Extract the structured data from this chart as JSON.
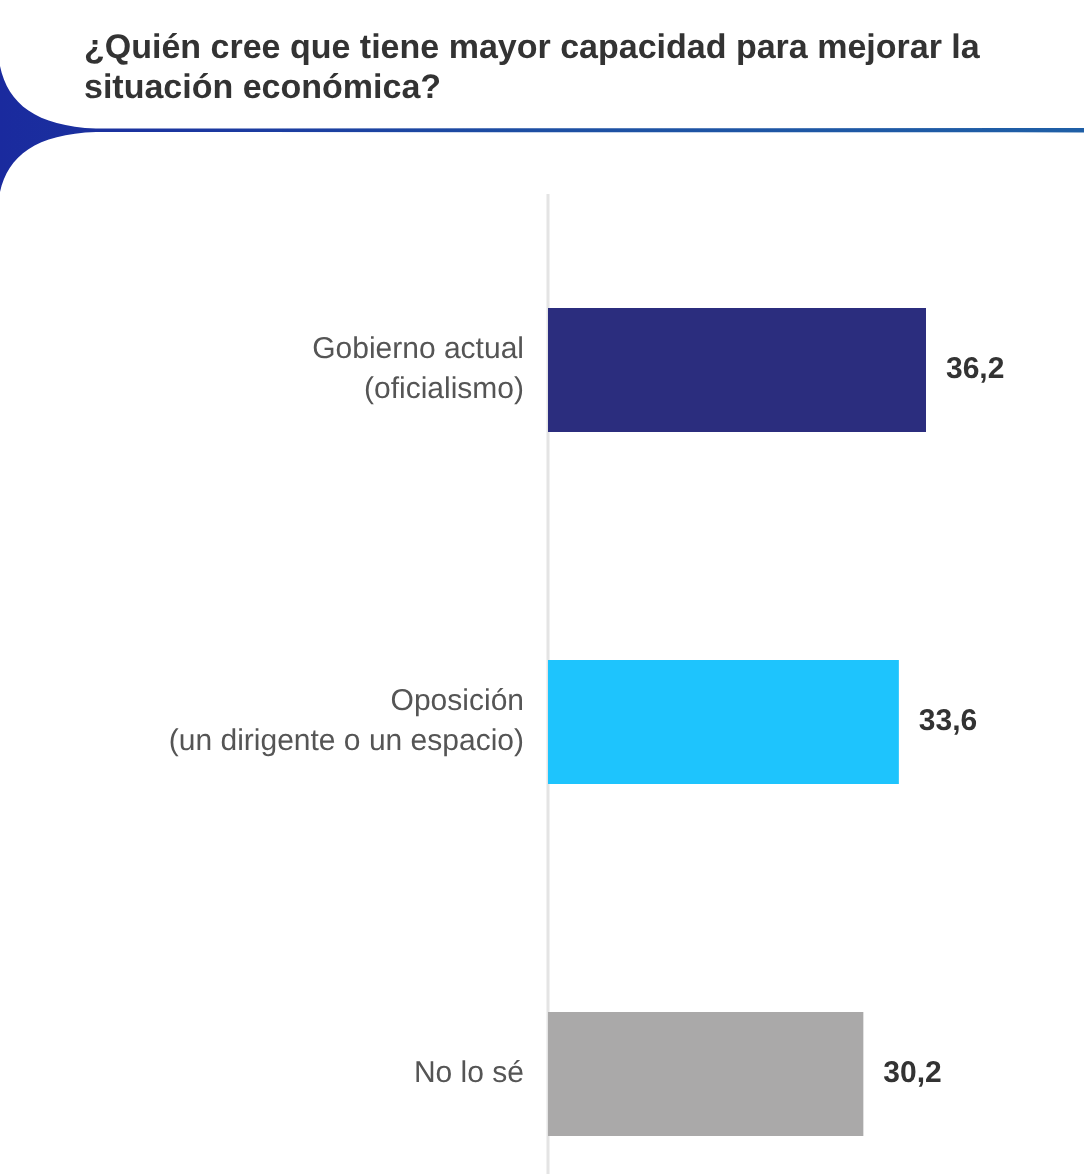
{
  "chart_data": {
    "type": "bar",
    "orientation": "horizontal",
    "title": "¿Quién cree que tiene mayor capacidad para mejorar la situación económica?",
    "categories": [
      "Gobierno actual (oficialismo)",
      "Oposición (un dirigente o un espacio)",
      "No lo sé"
    ],
    "values": [
      36.2,
      33.6,
      30.2
    ],
    "colors": [
      "#2b2d7e",
      "#1ec4fd",
      "#aaa9a9"
    ],
    "value_labels": [
      "36,2",
      "33,6",
      "30,2"
    ],
    "tick_labels": "y"
  }
}
